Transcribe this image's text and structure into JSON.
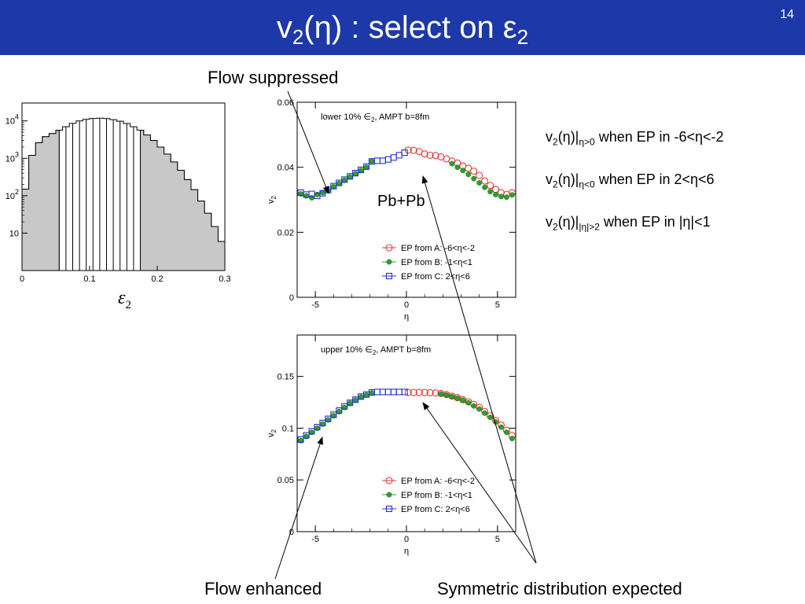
{
  "slide": {
    "title_v": "v",
    "title_sub": "2",
    "title_mid": "(η) : select on ε",
    "title_sub2": "2",
    "page_number": "14"
  },
  "annotations": {
    "flow_suppressed": "Flow suppressed",
    "flow_enhanced": "Flow enhanced",
    "symmetric": "Symmetric distribution expected",
    "pbpb": "Pb+Pb"
  },
  "notes": [
    {
      "pre": "v",
      "s1": "2",
      "mid": "(η)|",
      "s2": "η>0",
      "post": " when EP in -6<η<-2"
    },
    {
      "pre": "v",
      "s1": "2",
      "mid": "(η)|",
      "s2": "η<0",
      "post": " when EP in 2<η<6"
    },
    {
      "pre": "v",
      "s1": "2",
      "mid": "(η)|",
      "s2": "|η|>2",
      "post": " when EP in |η|<1"
    }
  ],
  "chart_data": [
    {
      "type": "bar",
      "name": "eps2-histogram",
      "xlabel": "ε2",
      "xlim": [
        0,
        0.3
      ],
      "ylog": true,
      "ylim": [
        1,
        30000
      ],
      "x_ticks": [
        "0",
        "0.1",
        "0.2",
        "0.3"
      ],
      "y_ticks": [
        "10",
        "10^2",
        "10^3",
        "10^4"
      ],
      "shaded_bins": [
        [
          0,
          0.055
        ],
        [
          0.175,
          0.3
        ]
      ],
      "bin_edges": [
        0.055,
        0.065,
        0.075,
        0.085,
        0.095,
        0.105,
        0.115,
        0.125,
        0.135,
        0.145,
        0.155,
        0.165,
        0.175
      ],
      "points": [
        [
          0.005,
          150
        ],
        [
          0.015,
          1200
        ],
        [
          0.025,
          2600
        ],
        [
          0.035,
          3800
        ],
        [
          0.045,
          4600
        ],
        [
          0.055,
          5600
        ],
        [
          0.065,
          7000
        ],
        [
          0.075,
          8600
        ],
        [
          0.085,
          10000
        ],
        [
          0.095,
          11000
        ],
        [
          0.105,
          11600
        ],
        [
          0.115,
          11800
        ],
        [
          0.125,
          11500
        ],
        [
          0.135,
          10800
        ],
        [
          0.145,
          9800
        ],
        [
          0.155,
          8500
        ],
        [
          0.165,
          7000
        ],
        [
          0.175,
          5600
        ],
        [
          0.185,
          4200
        ],
        [
          0.195,
          3000
        ],
        [
          0.205,
          2000
        ],
        [
          0.215,
          1300
        ],
        [
          0.225,
          800
        ],
        [
          0.235,
          480
        ],
        [
          0.245,
          270
        ],
        [
          0.255,
          145
        ],
        [
          0.265,
          72
        ],
        [
          0.275,
          34
        ],
        [
          0.285,
          15
        ],
        [
          0.295,
          6
        ]
      ]
    },
    {
      "type": "scatter",
      "name": "lower-10",
      "title": "lower 10% ∈2, AMPT b=8fm",
      "xlabel": "η",
      "ylabel": "v2",
      "xlim": [
        -6,
        6
      ],
      "ylim": [
        0,
        0.06
      ],
      "x_ticks": [
        -5,
        0,
        5
      ],
      "y_ticks": [
        0,
        0.02,
        0.04,
        0.06
      ],
      "legend": [
        {
          "label": "EP from A: -6<η<-2",
          "color": "#e53935",
          "marker": "circle-open"
        },
        {
          "label": "EP from B: -1<η<1",
          "color": "#2e9e2e",
          "marker": "circle-filled"
        },
        {
          "label": "EP from C:  2<η<6",
          "color": "#2233cc",
          "marker": "square-open"
        }
      ],
      "series": [
        {
          "name": "EP from A: -6<η<-2",
          "color": "#e53935",
          "marker": "circle-open",
          "x": [
            0.1,
            0.4,
            0.7,
            1.0,
            1.3,
            1.6,
            1.9,
            2.2,
            2.5,
            2.8,
            3.1,
            3.4,
            3.7,
            4.0,
            4.3,
            4.6,
            4.9,
            5.2,
            5.5,
            5.8
          ],
          "y": [
            0.0453,
            0.0452,
            0.0448,
            0.0441,
            0.0437,
            0.0436,
            0.0432,
            0.0426,
            0.0419,
            0.0413,
            0.0404,
            0.0397,
            0.0388,
            0.0375,
            0.0358,
            0.0344,
            0.0332,
            0.0322,
            0.0316,
            0.0322
          ]
        },
        {
          "name": "EP from B: -1<η<1",
          "color": "#2e9e2e",
          "marker": "circle-filled",
          "x": [
            -5.8,
            -5.5,
            -5.2,
            -4.9,
            -4.6,
            -4.3,
            -4.0,
            -3.7,
            -3.4,
            -3.1,
            -2.8,
            -2.5,
            -2.2,
            -1.9,
            2.5,
            2.8,
            3.1,
            3.4,
            3.7,
            4.0,
            4.3,
            4.6,
            4.9,
            5.2,
            5.5,
            5.8
          ],
          "y": [
            0.0318,
            0.0312,
            0.0306,
            0.0316,
            0.0322,
            0.0328,
            0.034,
            0.035,
            0.036,
            0.037,
            0.038,
            0.039,
            0.04,
            0.0418,
            0.0411,
            0.04,
            0.039,
            0.0378,
            0.0365,
            0.0352,
            0.0338,
            0.0325,
            0.0316,
            0.031,
            0.0308,
            0.0315
          ]
        },
        {
          "name": "EP from C:  2<η<6",
          "color": "#2233cc",
          "marker": "square-open",
          "x": [
            -5.8,
            -5.5,
            -5.2,
            -4.9,
            -4.6,
            -4.3,
            -4.0,
            -3.7,
            -3.4,
            -3.1,
            -2.8,
            -2.5,
            -2.2,
            -1.9,
            -1.6,
            -1.3,
            -1.0,
            -0.7,
            -0.4,
            -0.1
          ],
          "y": [
            0.0322,
            0.0316,
            0.0318,
            0.0312,
            0.032,
            0.033,
            0.0342,
            0.0352,
            0.0362,
            0.0372,
            0.0382,
            0.0392,
            0.0402,
            0.0418,
            0.042,
            0.042,
            0.0424,
            0.043,
            0.0437,
            0.0445
          ]
        }
      ]
    },
    {
      "type": "scatter",
      "name": "upper-10",
      "title": "upper 10% ∈2, AMPT b=8fm",
      "xlabel": "η",
      "ylabel": "v2",
      "xlim": [
        -6,
        6
      ],
      "ylim": [
        0,
        0.19
      ],
      "x_ticks": [
        -5,
        0,
        5
      ],
      "y_ticks": [
        0,
        0.05,
        0.1,
        0.15
      ],
      "legend": [
        {
          "label": "EP from A: -6<η<-2",
          "color": "#e53935",
          "marker": "circle-open"
        },
        {
          "label": "EP from B: -1<η<1",
          "color": "#2e9e2e",
          "marker": "circle-filled"
        },
        {
          "label": "EP from C:  2<η<6",
          "color": "#2233cc",
          "marker": "square-open"
        }
      ],
      "series": [
        {
          "name": "EP from A: -6<η<-2",
          "color": "#e53935",
          "marker": "circle-open",
          "x": [
            0.1,
            0.4,
            0.7,
            1.0,
            1.3,
            1.6,
            1.9,
            2.2,
            2.5,
            2.8,
            3.1,
            3.4,
            3.7,
            4.0,
            4.3,
            4.6,
            4.9,
            5.2,
            5.5,
            5.8
          ],
          "y": [
            0.1345,
            0.1345,
            0.1345,
            0.1345,
            0.1343,
            0.134,
            0.1335,
            0.1325,
            0.131,
            0.1295,
            0.1275,
            0.1255,
            0.123,
            0.12,
            0.116,
            0.112,
            0.1075,
            0.103,
            0.098,
            0.093
          ]
        },
        {
          "name": "EP from B: -1<η<1",
          "color": "#2e9e2e",
          "marker": "circle-filled",
          "x": [
            -5.8,
            -5.5,
            -5.2,
            -4.9,
            -4.6,
            -4.3,
            -4.0,
            -3.7,
            -3.4,
            -3.1,
            -2.8,
            -2.5,
            -2.2,
            -1.9,
            1.9,
            2.2,
            2.5,
            2.8,
            3.1,
            3.4,
            3.7,
            4.0,
            4.3,
            4.6,
            4.9,
            5.2,
            5.5,
            5.8
          ],
          "y": [
            0.088,
            0.092,
            0.096,
            0.1,
            0.104,
            0.108,
            0.112,
            0.116,
            0.12,
            0.124,
            0.127,
            0.13,
            0.132,
            0.134,
            0.133,
            0.132,
            0.1305,
            0.129,
            0.127,
            0.1245,
            0.1215,
            0.1185,
            0.1145,
            0.1105,
            0.106,
            0.101,
            0.096,
            0.09
          ]
        },
        {
          "name": "EP from C:  2<η<6",
          "color": "#2233cc",
          "marker": "square-open",
          "x": [
            -5.8,
            -5.5,
            -5.2,
            -4.9,
            -4.6,
            -4.3,
            -4.0,
            -3.7,
            -3.4,
            -3.1,
            -2.8,
            -2.5,
            -2.2,
            -1.9,
            -1.6,
            -1.3,
            -1.0,
            -0.7,
            -0.4,
            -0.1
          ],
          "y": [
            0.089,
            0.093,
            0.097,
            0.101,
            0.105,
            0.109,
            0.113,
            0.117,
            0.121,
            0.1245,
            0.1275,
            0.1305,
            0.1325,
            0.1345,
            0.135,
            0.135,
            0.135,
            0.135,
            0.135,
            0.135
          ]
        }
      ]
    }
  ]
}
